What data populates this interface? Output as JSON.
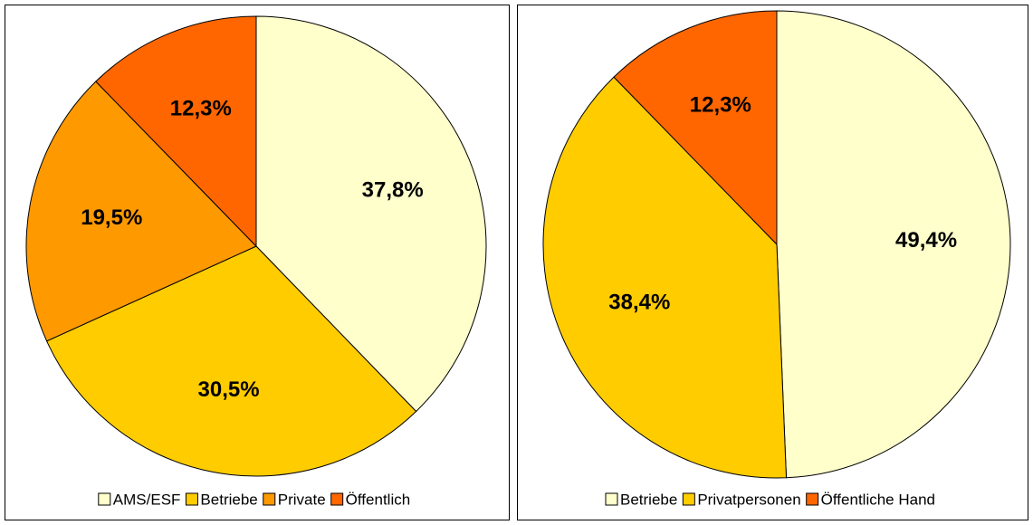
{
  "chart_data": [
    {
      "type": "pie",
      "categories": [
        "AMS/ESF",
        "Betriebe",
        "Private",
        "Öffentlich"
      ],
      "values": [
        37.8,
        30.5,
        19.5,
        12.3
      ],
      "value_labels": [
        "37,8%",
        "30,5%",
        "19,5%",
        "12,3%"
      ],
      "colors": [
        "#ffffcc",
        "#ffcc00",
        "#ff9900",
        "#ff6600"
      ]
    },
    {
      "type": "pie",
      "categories": [
        "Betriebe",
        "Privatpersonen",
        "Öffentliche Hand"
      ],
      "values": [
        49.4,
        38.4,
        12.3
      ],
      "value_labels": [
        "49,4%",
        "38,4%",
        "12,3%"
      ],
      "colors": [
        "#ffffcc",
        "#ffcc00",
        "#ff6600"
      ]
    }
  ]
}
